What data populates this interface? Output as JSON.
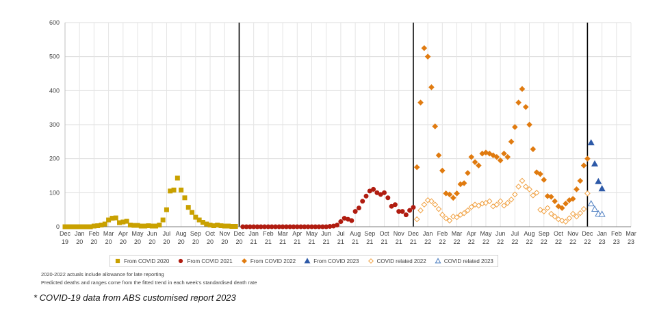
{
  "chart_data": {
    "type": "scatter",
    "title": "",
    "xlabel": "",
    "ylabel": "",
    "ylim": [
      0,
      600
    ],
    "yticks": [
      0,
      100,
      200,
      300,
      400,
      500,
      600
    ],
    "x_tick_labels": [
      [
        "Dec",
        "19"
      ],
      [
        "Jan",
        "20"
      ],
      [
        "Feb",
        "20"
      ],
      [
        "Mar",
        "20"
      ],
      [
        "Apr",
        "20"
      ],
      [
        "May",
        "20"
      ],
      [
        "Jun",
        "20"
      ],
      [
        "Jul",
        "20"
      ],
      [
        "Aug",
        "20"
      ],
      [
        "Sep",
        "20"
      ],
      [
        "Oct",
        "20"
      ],
      [
        "Nov",
        "20"
      ],
      [
        "Dec",
        "20"
      ],
      [
        "Jan",
        "21"
      ],
      [
        "Feb",
        "21"
      ],
      [
        "Mar",
        "21"
      ],
      [
        "Apr",
        "21"
      ],
      [
        "May",
        "21"
      ],
      [
        "Jun",
        "21"
      ],
      [
        "Jul",
        "21"
      ],
      [
        "Aug",
        "21"
      ],
      [
        "Sep",
        "21"
      ],
      [
        "Oct",
        "21"
      ],
      [
        "Nov",
        "21"
      ],
      [
        "Dec",
        "21"
      ],
      [
        "Jan",
        "22"
      ],
      [
        "Feb",
        "22"
      ],
      [
        "Mar",
        "22"
      ],
      [
        "Apr",
        "22"
      ],
      [
        "May",
        "22"
      ],
      [
        "Jun",
        "22"
      ],
      [
        "Jul",
        "22"
      ],
      [
        "Aug",
        "22"
      ],
      [
        "Sep",
        "22"
      ],
      [
        "Oct",
        "22"
      ],
      [
        "Nov",
        "22"
      ],
      [
        "Dec",
        "22"
      ],
      [
        "Jan",
        "23"
      ],
      [
        "Feb",
        "23"
      ],
      [
        "Mar",
        "23"
      ]
    ],
    "x_unit": "months since Dec 2019",
    "year_boundaries": [
      12,
      24,
      36
    ],
    "grid": true,
    "legend_position": "bottom",
    "series": [
      {
        "name": "From COVID 2020",
        "marker": "square",
        "filled": true,
        "color": "#c9a100",
        "x": [
          0,
          0.25,
          0.5,
          0.75,
          1,
          1.25,
          1.5,
          1.75,
          2,
          2.25,
          2.5,
          2.75,
          3,
          3.25,
          3.5,
          3.75,
          4,
          4.25,
          4.5,
          4.75,
          5,
          5.25,
          5.5,
          5.75,
          6,
          6.25,
          6.5,
          6.75,
          7,
          7.25,
          7.5,
          7.75,
          8,
          8.25,
          8.5,
          8.75,
          9,
          9.25,
          9.5,
          9.75,
          10,
          10.25,
          10.5,
          10.75,
          11,
          11.25,
          11.5,
          11.75
        ],
        "values": [
          0,
          0,
          0,
          0,
          0,
          0,
          0,
          0,
          2,
          3,
          5,
          8,
          20,
          25,
          26,
          12,
          14,
          16,
          5,
          4,
          4,
          2,
          2,
          3,
          2,
          2,
          5,
          20,
          50,
          105,
          108,
          143,
          108,
          85,
          57,
          42,
          28,
          20,
          13,
          8,
          5,
          3,
          5,
          3,
          2,
          2,
          1,
          1
        ]
      },
      {
        "name": "From COVID 2021",
        "marker": "circle",
        "filled": true,
        "color": "#b01c10",
        "x": [
          12.25,
          12.5,
          12.75,
          13,
          13.25,
          13.5,
          13.75,
          14,
          14.25,
          14.5,
          14.75,
          15,
          15.25,
          15.5,
          15.75,
          16,
          16.25,
          16.5,
          16.75,
          17,
          17.25,
          17.5,
          17.75,
          18,
          18.25,
          18.5,
          18.75,
          19,
          19.25,
          19.5,
          19.75,
          20,
          20.25,
          20.5,
          20.75,
          21,
          21.25,
          21.5,
          21.75,
          22,
          22.25,
          22.5,
          22.75,
          23,
          23.25,
          23.5,
          23.75,
          24
        ],
        "values": [
          0,
          0,
          0,
          0,
          0,
          0,
          0,
          0,
          0,
          0,
          0,
          0,
          0,
          0,
          0,
          0,
          0,
          0,
          0,
          0,
          0,
          0,
          0,
          0,
          1,
          2,
          5,
          15,
          25,
          22,
          18,
          45,
          55,
          75,
          90,
          105,
          110,
          100,
          95,
          100,
          85,
          60,
          65,
          45,
          45,
          35,
          48,
          57
        ]
      },
      {
        "name": "From COVID 2022",
        "marker": "diamond",
        "filled": true,
        "color": "#e07b10",
        "x": [
          24.25,
          24.5,
          24.75,
          25,
          25.25,
          25.5,
          25.75,
          26,
          26.25,
          26.5,
          26.75,
          27,
          27.25,
          27.5,
          27.75,
          28,
          28.25,
          28.5,
          28.75,
          29,
          29.25,
          29.5,
          29.75,
          30,
          30.25,
          30.5,
          30.75,
          31,
          31.25,
          31.5,
          31.75,
          32,
          32.25,
          32.5,
          32.75,
          33,
          33.25,
          33.5,
          33.75,
          34,
          34.25,
          34.5,
          34.75,
          35,
          35.25,
          35.5,
          35.75,
          36
        ],
        "values": [
          175,
          365,
          525,
          500,
          410,
          295,
          210,
          165,
          98,
          95,
          85,
          98,
          125,
          128,
          158,
          205,
          190,
          180,
          215,
          218,
          215,
          210,
          205,
          195,
          215,
          205,
          250,
          293,
          365,
          405,
          352,
          300,
          228,
          160,
          155,
          138,
          90,
          88,
          75,
          60,
          55,
          68,
          78,
          82,
          110,
          135,
          180,
          200
        ]
      },
      {
        "name": "From COVID 2023",
        "marker": "triangle",
        "filled": true,
        "color": "#2e5aa8",
        "x": [
          36.25,
          36.5,
          36.75,
          37
        ],
        "values": [
          247,
          185,
          133,
          112
        ]
      },
      {
        "name": "COVID related 2022",
        "marker": "diamond",
        "filled": false,
        "color": "#f0a040",
        "x": [
          24.25,
          24.5,
          24.75,
          25,
          25.25,
          25.5,
          25.75,
          26,
          26.25,
          26.5,
          26.75,
          27,
          27.25,
          27.5,
          27.75,
          28,
          28.25,
          28.5,
          28.75,
          29,
          29.25,
          29.5,
          29.75,
          30,
          30.25,
          30.5,
          30.75,
          31,
          31.25,
          31.5,
          31.75,
          32,
          32.25,
          32.5,
          32.75,
          33,
          33.25,
          33.5,
          33.75,
          34,
          34.25,
          34.5,
          34.75,
          35,
          35.25,
          35.5,
          35.75,
          36
        ],
        "values": [
          22,
          48,
          65,
          78,
          75,
          65,
          52,
          35,
          25,
          18,
          30,
          28,
          35,
          40,
          48,
          58,
          65,
          62,
          68,
          70,
          75,
          60,
          65,
          75,
          62,
          70,
          80,
          95,
          118,
          135,
          118,
          110,
          92,
          100,
          50,
          45,
          55,
          38,
          30,
          22,
          18,
          15,
          25,
          38,
          30,
          40,
          52,
          98
        ]
      },
      {
        "name": "COVID related 2023",
        "marker": "triangle",
        "filled": false,
        "color": "#4a7cc0",
        "x": [
          36.25,
          36.5,
          36.75,
          37
        ],
        "values": [
          68,
          52,
          38,
          37
        ]
      }
    ]
  },
  "notes": {
    "line1": "2020-2022  actuals include allowance for late reporting",
    "line2": "Predicted deaths and ranges come from the fitted trend in each week's standardised death rate"
  },
  "footer": "* COVID-19 data from ABS customised report 2023"
}
